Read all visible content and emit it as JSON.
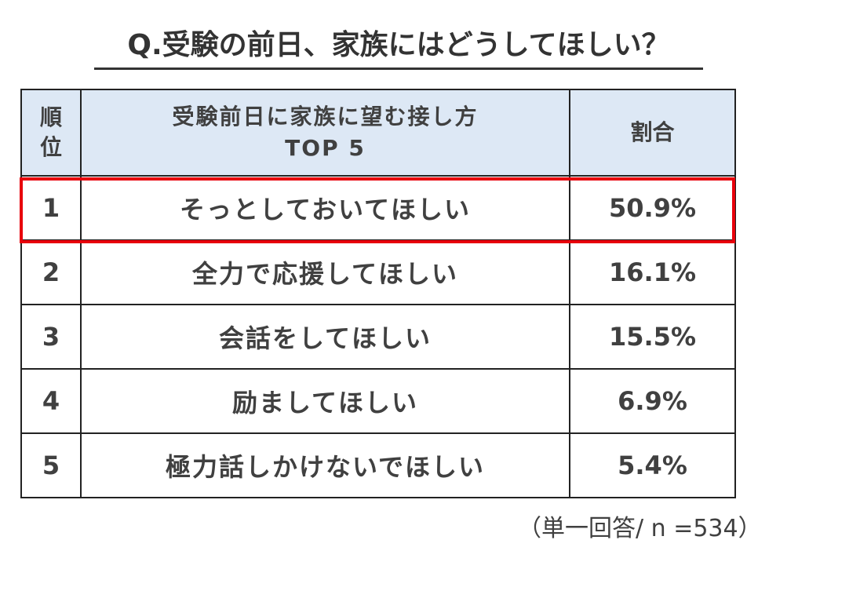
{
  "title": "Q.受験の前日、家族にはどうしてほしい？",
  "chart_data": {
    "type": "table",
    "title": "Q.受験の前日、家族にはどうしてほしい？",
    "columns": [
      "順位",
      "受験前日に家族に望む接し方 TOP 5",
      "割合"
    ],
    "header": {
      "rank": "順位",
      "item_line1": "受験前日に家族に望む接し方",
      "item_line2": "TOP 5",
      "share": "割合"
    },
    "rows": [
      {
        "rank": "1",
        "item": "そっとしておいてほしい",
        "share": "50.9%",
        "value": 50.9
      },
      {
        "rank": "2",
        "item": "全力で応援してほしい",
        "share": "16.1%",
        "value": 16.1
      },
      {
        "rank": "3",
        "item": "会話をしてほしい",
        "share": "15.5%",
        "value": 15.5
      },
      {
        "rank": "4",
        "item": "励ましてほしい",
        "share": "6.9%",
        "value": 6.9
      },
      {
        "rank": "5",
        "item": "極力話しかけないでほしい",
        "share": "5.4%",
        "value": 5.4
      }
    ],
    "highlighted_row": "1",
    "highlight_color": "#e8000b",
    "header_color": "#dde8f5"
  },
  "note": "（単一回答/ n =534）"
}
